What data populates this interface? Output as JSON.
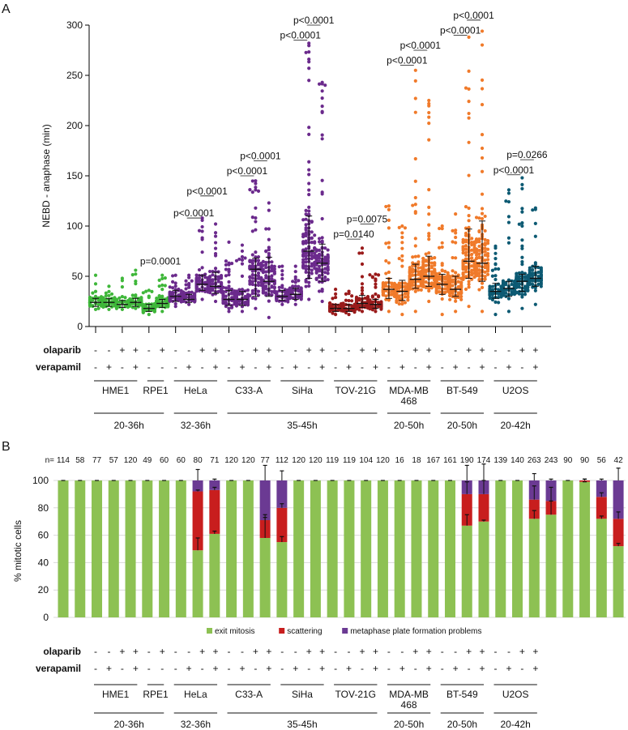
{
  "chart_data": [
    {
      "type": "scatter",
      "panel_label": "A",
      "ylabel": "NEBD - anaphase (min)",
      "ylim": [
        0,
        300
      ],
      "yticks": [
        0,
        50,
        100,
        150,
        200,
        250,
        300
      ],
      "grid": false,
      "summary_fields": [
        "median",
        "q1",
        "q3",
        "min",
        "max"
      ],
      "columns": [
        {
          "group": "HME1",
          "olaparib": "-",
          "verapamil": "-",
          "stats": [
            24,
            20,
            28,
            17,
            51
          ]
        },
        {
          "group": "HME1",
          "olaparib": "-",
          "verapamil": "+",
          "stats": [
            24,
            20,
            28,
            17,
            40
          ]
        },
        {
          "group": "HME1",
          "olaparib": "+",
          "verapamil": "-",
          "stats": [
            22,
            19,
            26,
            17,
            48
          ]
        },
        {
          "group": "HME1",
          "olaparib": "+",
          "verapamil": "+",
          "stats": [
            24,
            20,
            28,
            18,
            56
          ]
        },
        {
          "group": "RPE1",
          "olaparib": "-",
          "verapamil": "-",
          "stats": [
            18,
            15,
            22,
            12,
            36
          ]
        },
        {
          "group": "RPE1",
          "olaparib": "+",
          "verapamil": "-",
          "stats": [
            23,
            19,
            27,
            15,
            51
          ]
        },
        {
          "group": "HeLa",
          "olaparib": "-",
          "verapamil": "-",
          "stats": [
            30,
            25,
            36,
            20,
            51
          ]
        },
        {
          "group": "HeLa",
          "olaparib": "-",
          "verapamil": "+",
          "stats": [
            27,
            24,
            32,
            22,
            51
          ]
        },
        {
          "group": "HeLa",
          "olaparib": "+",
          "verapamil": "-",
          "stats": [
            42,
            36,
            51,
            27,
            108
          ]
        },
        {
          "group": "HeLa",
          "olaparib": "+",
          "verapamil": "+",
          "stats": [
            40,
            33,
            54,
            25,
            102
          ]
        },
        {
          "group": "C33-A",
          "olaparib": "-",
          "verapamil": "-",
          "stats": [
            27,
            21,
            36,
            15,
            84
          ]
        },
        {
          "group": "C33-A",
          "olaparib": "-",
          "verapamil": "+",
          "stats": [
            27,
            21,
            35,
            15,
            81
          ]
        },
        {
          "group": "C33-A",
          "olaparib": "+",
          "verapamil": "-",
          "stats": [
            57,
            30,
            68,
            18,
            145
          ]
        },
        {
          "group": "C33-A",
          "olaparib": "+",
          "verapamil": "+",
          "stats": [
            45,
            30,
            69,
            9,
            123
          ]
        },
        {
          "group": "SiHa",
          "olaparib": "-",
          "verapamil": "-",
          "stats": [
            30,
            26,
            36,
            22,
            60
          ]
        },
        {
          "group": "SiHa",
          "olaparib": "-",
          "verapamil": "+",
          "stats": [
            32,
            27,
            38,
            22,
            60
          ]
        },
        {
          "group": "SiHa",
          "olaparib": "+",
          "verapamil": "-",
          "stats": [
            75,
            48,
            110,
            27,
            282
          ]
        },
        {
          "group": "SiHa",
          "olaparib": "+",
          "verapamil": "+",
          "stats": [
            63,
            45,
            82,
            25,
            243
          ]
        },
        {
          "group": "TOV-21G",
          "olaparib": "-",
          "verapamil": "-",
          "stats": [
            18,
            15,
            22,
            12,
            37
          ]
        },
        {
          "group": "TOV-21G",
          "olaparib": "-",
          "verapamil": "+",
          "stats": [
            18,
            15,
            22,
            12,
            35
          ]
        },
        {
          "group": "TOV-21G",
          "olaparib": "+",
          "verapamil": "-",
          "stats": [
            23,
            19,
            31,
            15,
            78
          ]
        },
        {
          "group": "TOV-21G",
          "olaparib": "+",
          "verapamil": "+",
          "stats": [
            22,
            18,
            27,
            15,
            52
          ]
        },
        {
          "group": "MDA-MB 468",
          "olaparib": "-",
          "verapamil": "-",
          "stats": [
            37,
            28,
            48,
            15,
            120
          ]
        },
        {
          "group": "MDA-MB 468",
          "olaparib": "-",
          "verapamil": "+",
          "stats": [
            35,
            26,
            46,
            12,
            100
          ]
        },
        {
          "group": "MDA-MB 468",
          "olaparib": "+",
          "verapamil": "-",
          "stats": [
            47,
            38,
            62,
            15,
            255
          ]
        },
        {
          "group": "MDA-MB 468",
          "olaparib": "+",
          "verapamil": "+",
          "stats": [
            50,
            40,
            70,
            25,
            225
          ]
        },
        {
          "group": "BT-549",
          "olaparib": "-",
          "verapamil": "-",
          "stats": [
            42,
            32,
            52,
            12,
            100
          ]
        },
        {
          "group": "BT-549",
          "olaparib": "-",
          "verapamil": "+",
          "stats": [
            37,
            30,
            50,
            15,
            112
          ]
        },
        {
          "group": "BT-549",
          "olaparib": "+",
          "verapamil": "-",
          "stats": [
            65,
            48,
            97,
            20,
            288
          ]
        },
        {
          "group": "BT-549",
          "olaparib": "+",
          "verapamil": "+",
          "stats": [
            63,
            45,
            105,
            15,
            294
          ]
        },
        {
          "group": "U2OS",
          "olaparib": "-",
          "verapamil": "-",
          "stats": [
            35,
            28,
            43,
            12,
            80
          ]
        },
        {
          "group": "U2OS",
          "olaparib": "-",
          "verapamil": "+",
          "stats": [
            38,
            30,
            45,
            15,
            136
          ]
        },
        {
          "group": "U2OS",
          "olaparib": "+",
          "verapamil": "-",
          "stats": [
            45,
            35,
            52,
            18,
            148
          ]
        },
        {
          "group": "U2OS",
          "olaparib": "+",
          "verapamil": "+",
          "stats": [
            48,
            40,
            60,
            22,
            118
          ]
        }
      ],
      "group_colors": {
        "HME1": "#3fb73a",
        "RPE1": "#3fb73a",
        "HeLa": "#6b2a8c",
        "C33-A": "#6b2a8c",
        "SiHa": "#6b2a8c",
        "TOV-21G": "#9a1b1b",
        "MDA-MB 468": "#f07a2a",
        "BT-549": "#f07a2a",
        "U2OS": "#0d5a73"
      },
      "comparisons": [
        {
          "from": 4,
          "to": 5,
          "text": "p=0.0001"
        },
        {
          "from": 6,
          "to": 8,
          "text": "p<0.0001"
        },
        {
          "from": 7,
          "to": 9,
          "text": "p<0.0001"
        },
        {
          "from": 10,
          "to": 12,
          "text": "p<0.0001"
        },
        {
          "from": 11,
          "to": 13,
          "text": "p<0.0001"
        },
        {
          "from": 14,
          "to": 16,
          "text": "p<0.0001"
        },
        {
          "from": 15,
          "to": 17,
          "text": "p<0.0001"
        },
        {
          "from": 18,
          "to": 20,
          "text": "p=0.0140"
        },
        {
          "from": 19,
          "to": 21,
          "text": "p=0.0075"
        },
        {
          "from": 22,
          "to": 24,
          "text": "p<0.0001"
        },
        {
          "from": 23,
          "to": 25,
          "text": "p<0.0001"
        },
        {
          "from": 26,
          "to": 28,
          "text": "p<0.0001"
        },
        {
          "from": 27,
          "to": 29,
          "text": "p<0.0001"
        },
        {
          "from": 30,
          "to": 32,
          "text": "p<0.0001"
        },
        {
          "from": 31,
          "to": 33,
          "text": "p=0.0266"
        }
      ]
    },
    {
      "type": "bar",
      "stacked": true,
      "panel_label": "B",
      "ylabel": "% mitotic cells",
      "ylim": [
        0,
        100
      ],
      "yticks": [
        0,
        20,
        40,
        60,
        80,
        100
      ],
      "grid": true,
      "n_prefix": "n=",
      "n": [
        114,
        58,
        77,
        57,
        120,
        49,
        60,
        60,
        80,
        71,
        120,
        120,
        77,
        112,
        120,
        120,
        119,
        119,
        104,
        120,
        16,
        18,
        167,
        161,
        190,
        174,
        139,
        140,
        263,
        243,
        90,
        90,
        56,
        42
      ],
      "legend_position": "bottom",
      "series": [
        {
          "name": "exit mitosis",
          "color": "#8dc153",
          "values": [
            100,
            100,
            100,
            100,
            100,
            100,
            100,
            100,
            49,
            61,
            100,
            100,
            58,
            55,
            100,
            100,
            100,
            100,
            100,
            100,
            100,
            100,
            100,
            100,
            67,
            70,
            100,
            100,
            72,
            75,
            100,
            99,
            72,
            52
          ],
          "errors": [
            0,
            0,
            0,
            0,
            0,
            0,
            0,
            0,
            9,
            2,
            0,
            0,
            15,
            4,
            0,
            0,
            0,
            0,
            0,
            0,
            0,
            0,
            0,
            0,
            8,
            1,
            0,
            0,
            6,
            10,
            0,
            0,
            2,
            2
          ]
        },
        {
          "name": "scattering",
          "color": "#c81e1e",
          "values": [
            0,
            0,
            0,
            0,
            0,
            0,
            0,
            0,
            43,
            32,
            0,
            0,
            13,
            25,
            0,
            0,
            0,
            0,
            0,
            0,
            0,
            0,
            0,
            0,
            23,
            20,
            0,
            0,
            14,
            10,
            0,
            1,
            16,
            20
          ],
          "errors": [
            0,
            0,
            0,
            0,
            0,
            0,
            0,
            0,
            1,
            2,
            0,
            0,
            4,
            3,
            0,
            0,
            0,
            0,
            0,
            0,
            0,
            0,
            0,
            0,
            9,
            10,
            0,
            0,
            10,
            10,
            0,
            1,
            3,
            5
          ]
        },
        {
          "name": "metaphase plate formation problems",
          "color": "#6b3a93",
          "values": [
            0,
            0,
            0,
            0,
            0,
            0,
            0,
            0,
            8,
            7,
            0,
            0,
            29,
            20,
            0,
            0,
            0,
            0,
            0,
            0,
            0,
            0,
            0,
            0,
            10,
            10,
            0,
            0,
            14,
            15,
            0,
            0,
            12,
            28
          ],
          "errors": [
            0,
            0,
            0,
            0,
            0,
            0,
            0,
            0,
            8,
            1,
            0,
            0,
            11,
            7,
            0,
            0,
            0,
            0,
            0,
            0,
            0,
            0,
            0,
            0,
            11,
            12,
            0,
            0,
            5,
            1,
            0,
            1,
            1,
            9
          ]
        }
      ]
    }
  ],
  "treatment_rows": {
    "olaparib_label": "olaparib",
    "verapamil_label": "verapamil"
  },
  "cell_lines": [
    {
      "name": "HME1",
      "cols": [
        0,
        3
      ]
    },
    {
      "name": "RPE1",
      "cols": [
        4,
        5
      ]
    },
    {
      "name": "HeLa",
      "cols": [
        6,
        9
      ]
    },
    {
      "name": "C33-A",
      "cols": [
        10,
        13
      ]
    },
    {
      "name": "SiHa",
      "cols": [
        14,
        17
      ]
    },
    {
      "name": "TOV-21G",
      "cols": [
        18,
        21
      ]
    },
    {
      "name": "MDA-MB",
      "name2": "468",
      "cols": [
        22,
        25
      ]
    },
    {
      "name": "BT-549",
      "cols": [
        26,
        29
      ]
    },
    {
      "name": "U2OS",
      "cols": [
        30,
        33
      ]
    }
  ],
  "time_windows": [
    {
      "label": "20-36h",
      "cols": [
        0,
        5
      ]
    },
    {
      "label": "32-36h",
      "cols": [
        6,
        9
      ]
    },
    {
      "label": "35-45h",
      "cols": [
        10,
        21
      ]
    },
    {
      "label": "20-50h",
      "cols": [
        22,
        25
      ]
    },
    {
      "label": "20-50h",
      "cols": [
        26,
        29
      ]
    },
    {
      "label": "20-42h",
      "cols": [
        30,
        33
      ]
    }
  ]
}
